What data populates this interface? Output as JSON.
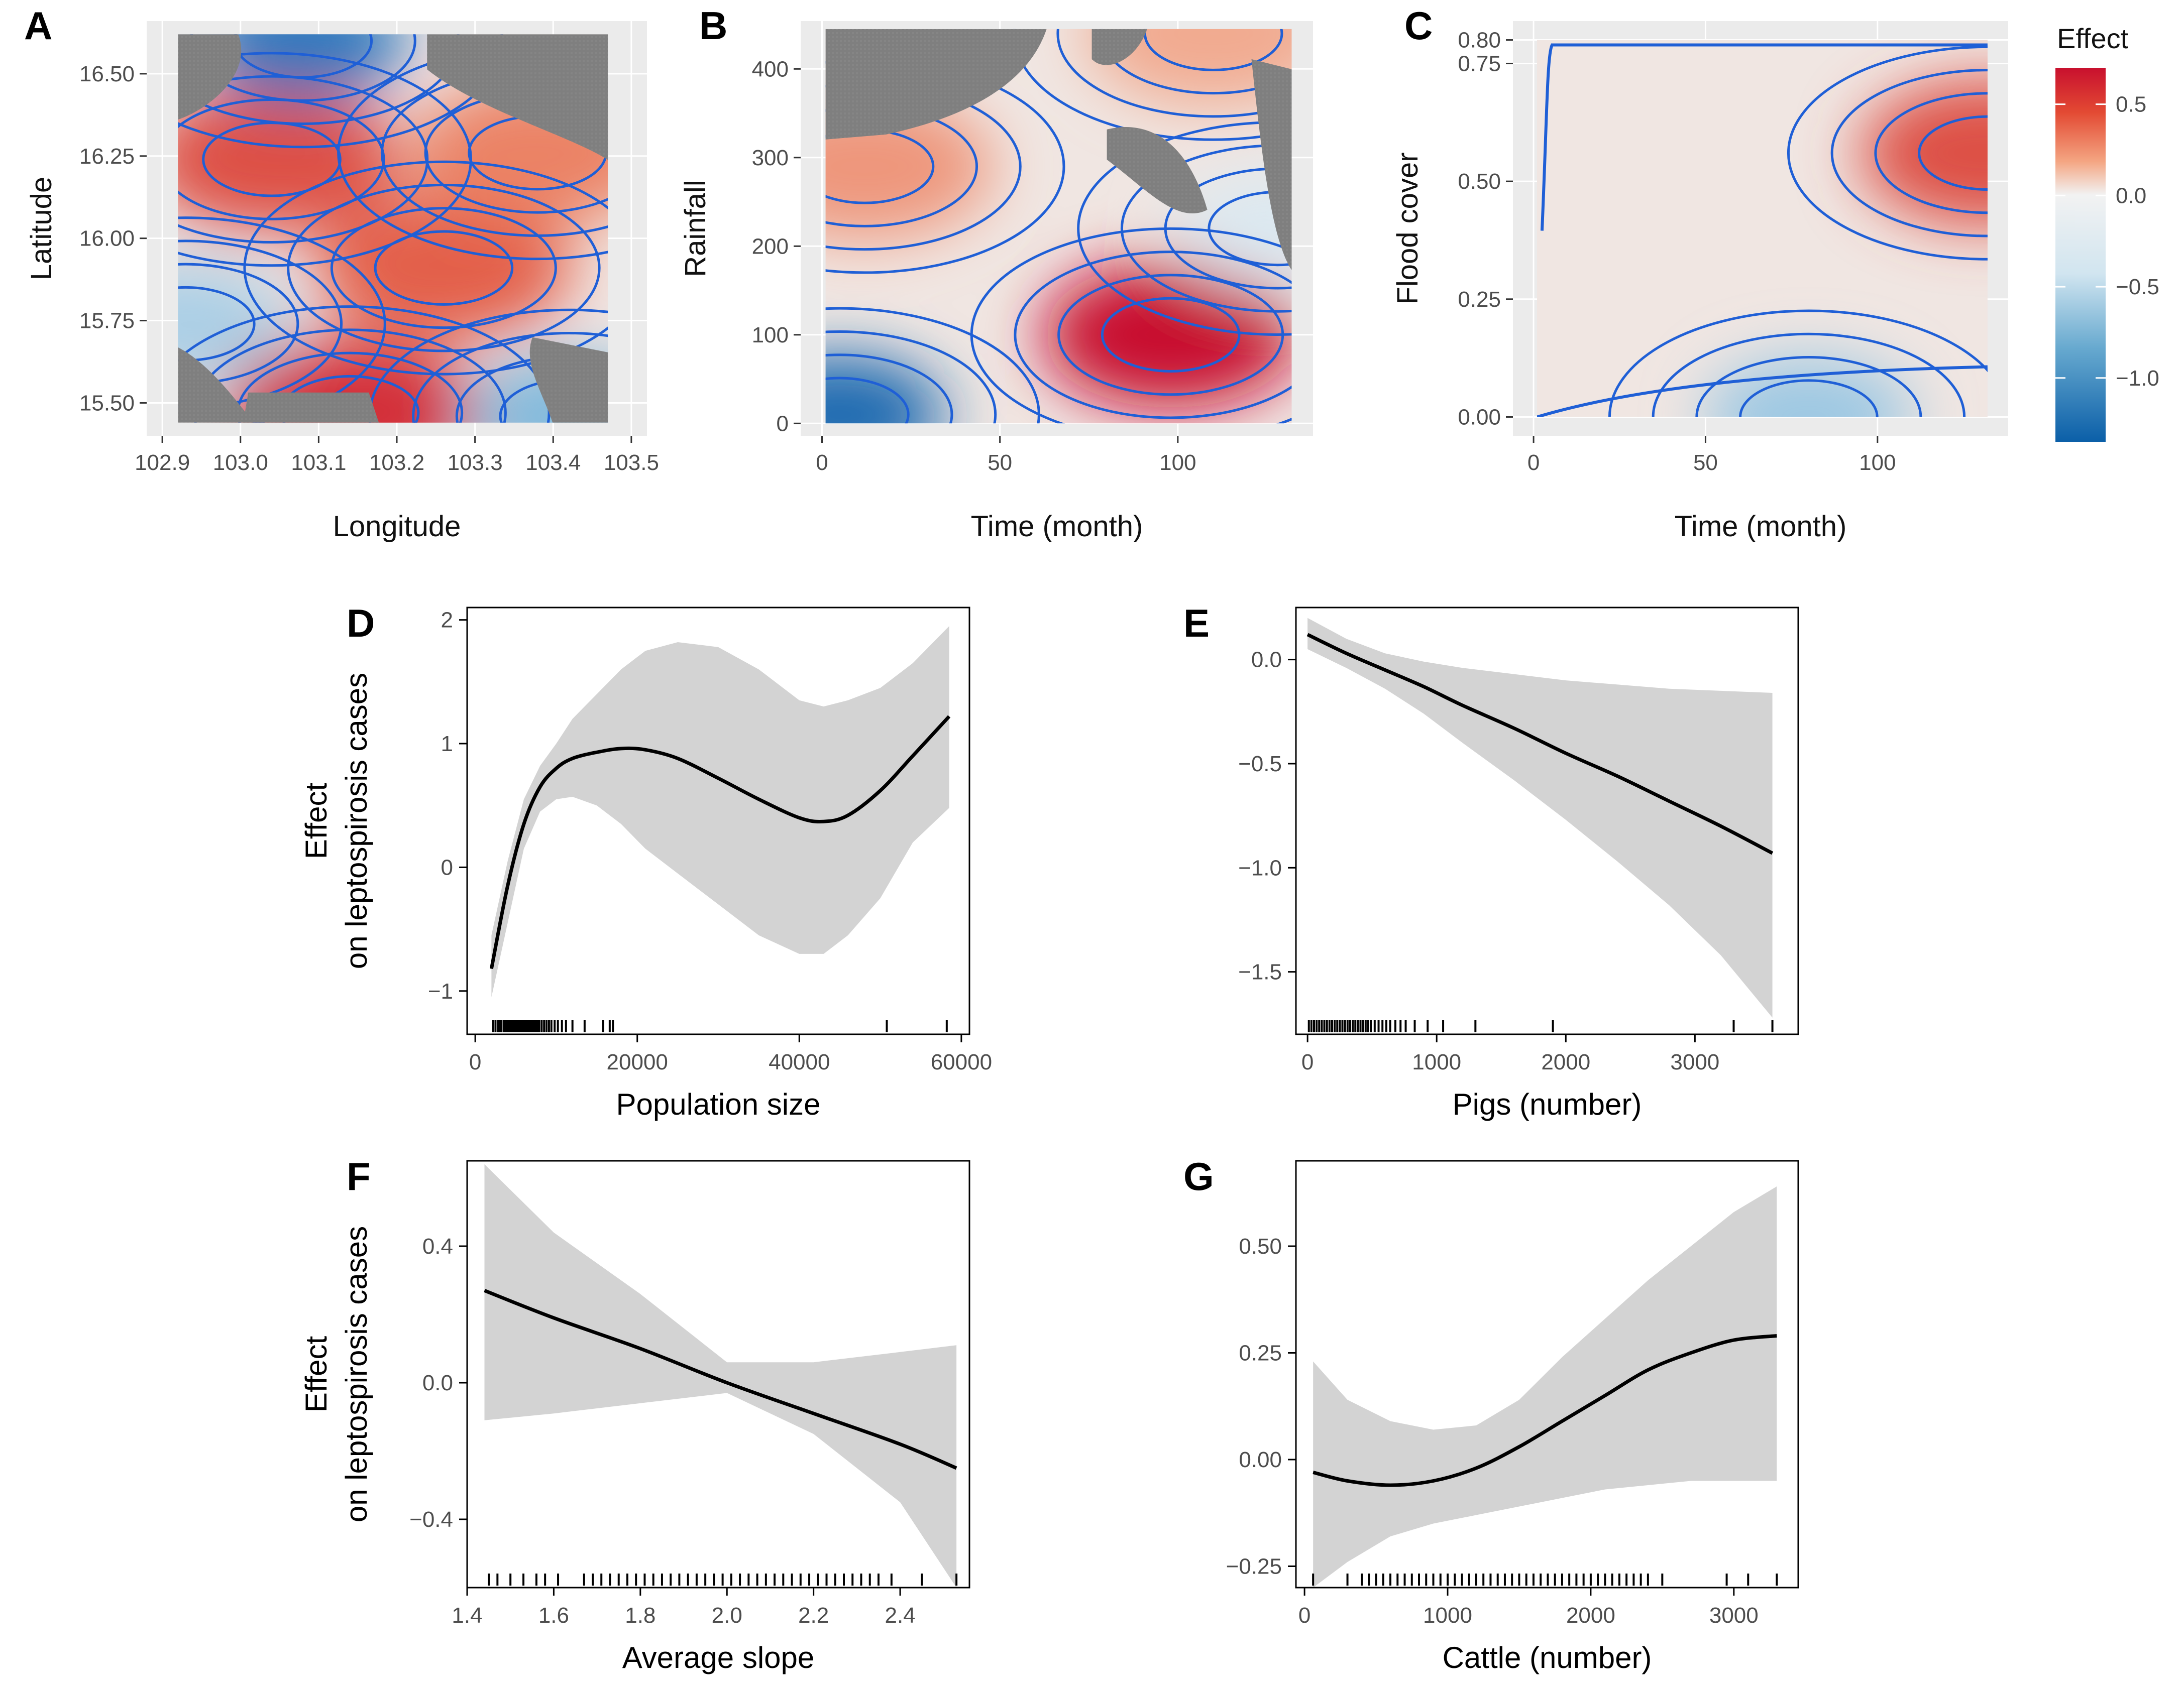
{
  "legend": {
    "title": "Effect",
    "ticks": [
      0.5,
      0.0,
      -0.5,
      -1.0
    ],
    "tick_labels": [
      "0.5",
      "0.0",
      "−0.5",
      "−1.0"
    ],
    "range": [
      -1.35,
      0.7
    ],
    "colors": {
      "high": "#c8102e",
      "mid": "#f2f2f2",
      "low": "#0b5fa8"
    }
  },
  "colors": {
    "panel_bg": "#ebebeb",
    "grid": "#ffffff",
    "contour": "#1f5fd6",
    "missing": "#7f7f7f",
    "ci_band": "#d3d3d3",
    "line": "#000000"
  },
  "chart_data": [
    {
      "id": "A",
      "type": "heatmap",
      "letter": "A",
      "xlabel": "Longitude",
      "ylabel": "Latitude",
      "xlim": [
        102.88,
        103.52
      ],
      "ylim": [
        15.4,
        16.66
      ],
      "xticks": [
        102.9,
        103.0,
        103.1,
        103.2,
        103.3,
        103.4,
        103.5
      ],
      "xtick_labels": [
        "102.9",
        "103.0",
        "103.1",
        "103.2",
        "103.3",
        "103.4",
        "103.5"
      ],
      "yticks": [
        15.5,
        15.75,
        16.0,
        16.25,
        16.5
      ],
      "ytick_labels": [
        "15.50",
        "15.75",
        "16.00",
        "16.25",
        "16.50"
      ],
      "grid": true,
      "data_extent": {
        "x": [
          102.92,
          103.47
        ],
        "y": [
          15.44,
          16.62
        ]
      },
      "hotspots": [
        {
          "x": 103.04,
          "y": 16.24,
          "value": 0.5
        },
        {
          "x": 103.26,
          "y": 15.91,
          "value": 0.45
        },
        {
          "x": 103.14,
          "y": 15.47,
          "value": 0.6
        },
        {
          "x": 103.38,
          "y": 16.26,
          "value": 0.35
        },
        {
          "x": 103.08,
          "y": 16.6,
          "value": -1.0
        },
        {
          "x": 103.42,
          "y": 15.46,
          "value": -0.6
        },
        {
          "x": 102.93,
          "y": 15.74,
          "value": -0.45
        }
      ]
    },
    {
      "id": "B",
      "type": "heatmap",
      "letter": "B",
      "xlabel": "Time (month)",
      "ylabel": "Rainfall",
      "xlim": [
        -6,
        138
      ],
      "ylim": [
        -14,
        454
      ],
      "xticks": [
        0,
        50,
        100
      ],
      "xtick_labels": [
        "0",
        "50",
        "100"
      ],
      "yticks": [
        0,
        100,
        200,
        300,
        400
      ],
      "ytick_labels": [
        "0",
        "100",
        "200",
        "300",
        "400"
      ],
      "grid": true,
      "data_extent": {
        "x": [
          1,
          132
        ],
        "y": [
          0,
          445
        ]
      },
      "hotspots": [
        {
          "x": 98,
          "y": 100,
          "value": 0.7
        },
        {
          "x": 5,
          "y": 10,
          "value": -1.2
        },
        {
          "x": 12,
          "y": 290,
          "value": 0.3
        },
        {
          "x": 110,
          "y": 440,
          "value": 0.25
        },
        {
          "x": 128,
          "y": 220,
          "value": -0.2
        }
      ]
    },
    {
      "id": "C",
      "type": "heatmap",
      "letter": "C",
      "xlabel": "Time (month)",
      "ylabel": "Flood cover",
      "xlim": [
        -6,
        138
      ],
      "ylim": [
        -0.04,
        0.84
      ],
      "xticks": [
        0,
        50,
        100
      ],
      "xtick_labels": [
        "0",
        "50",
        "100"
      ],
      "yticks": [
        0.0,
        0.25,
        0.5,
        0.75,
        0.8
      ],
      "ytick_labels": [
        "0.00",
        "0.25",
        "0.50",
        "0.75",
        "0.80"
      ],
      "grid": true,
      "data_extent": {
        "x": [
          1,
          132
        ],
        "y": [
          0.0,
          0.8
        ]
      },
      "hotspots": [
        {
          "x": 132,
          "y": 0.56,
          "value": 0.5
        },
        {
          "x": 80,
          "y": 0.0,
          "value": -0.5
        }
      ]
    },
    {
      "id": "D",
      "type": "line",
      "letter": "D",
      "xlabel": "Population size",
      "ylabel": "Effect\non leptospirosis cases",
      "ylabel_lines": [
        "Effect",
        "on leptospirosis cases"
      ],
      "xlim": [
        -1000,
        61000
      ],
      "ylim": [
        -1.35,
        2.1
      ],
      "xticks": [
        0,
        20000,
        40000,
        60000
      ],
      "xtick_labels": [
        "0",
        "20000",
        "40000",
        "60000"
      ],
      "yticks": [
        -1,
        0,
        1,
        2
      ],
      "ytick_labels": [
        "−1",
        "0",
        "1",
        "2"
      ],
      "x": [
        2000,
        4000,
        6000,
        8000,
        10000,
        12000,
        15000,
        18000,
        21000,
        25000,
        30000,
        35000,
        40000,
        43000,
        46000,
        50000,
        54000,
        58500
      ],
      "fit": [
        -0.82,
        -0.15,
        0.35,
        0.65,
        0.8,
        0.88,
        0.93,
        0.96,
        0.95,
        0.88,
        0.72,
        0.55,
        0.4,
        0.37,
        0.42,
        0.62,
        0.9,
        1.22
      ],
      "lower": [
        -1.05,
        -0.45,
        0.15,
        0.45,
        0.55,
        0.57,
        0.5,
        0.35,
        0.15,
        -0.05,
        -0.3,
        -0.55,
        -0.7,
        -0.7,
        -0.55,
        -0.25,
        0.2,
        0.48
      ],
      "upper": [
        -0.55,
        0.05,
        0.55,
        0.82,
        1.0,
        1.2,
        1.4,
        1.6,
        1.75,
        1.82,
        1.78,
        1.6,
        1.35,
        1.3,
        1.35,
        1.45,
        1.65,
        1.95
      ],
      "rug": [
        2200,
        2500,
        2800,
        3000,
        3200,
        3500,
        3700,
        3900,
        4100,
        4300,
        4500,
        4700,
        4900,
        5100,
        5300,
        5500,
        5700,
        5900,
        6100,
        6300,
        6500,
        6700,
        6900,
        7100,
        7300,
        7500,
        7700,
        7900,
        8200,
        8500,
        8800,
        9100,
        9400,
        9800,
        10200,
        10700,
        11200,
        12000,
        13500,
        15800,
        16600,
        17000,
        50800,
        58200
      ]
    },
    {
      "id": "E",
      "type": "line",
      "letter": "E",
      "xlabel": "Pigs (number)",
      "ylabel": "",
      "xlim": [
        -90,
        3800
      ],
      "ylim": [
        -1.8,
        0.25
      ],
      "xticks": [
        0,
        1000,
        2000,
        3000
      ],
      "xtick_labels": [
        "0",
        "1000",
        "2000",
        "3000"
      ],
      "yticks": [
        0.0,
        -0.5,
        -1.0,
        -1.5
      ],
      "ytick_labels": [
        "0.0",
        "−0.5",
        "−1.0",
        "−1.5"
      ],
      "x": [
        0,
        300,
        600,
        900,
        1200,
        1600,
        2000,
        2400,
        2800,
        3200,
        3600
      ],
      "fit": [
        0.12,
        0.03,
        -0.05,
        -0.13,
        -0.22,
        -0.33,
        -0.45,
        -0.56,
        -0.68,
        -0.8,
        -0.93
      ],
      "lower": [
        0.05,
        -0.04,
        -0.14,
        -0.26,
        -0.4,
        -0.58,
        -0.77,
        -0.97,
        -1.18,
        -1.42,
        -1.72
      ],
      "upper": [
        0.2,
        0.1,
        0.03,
        -0.01,
        -0.04,
        -0.07,
        -0.1,
        -0.12,
        -0.14,
        -0.15,
        -0.16
      ],
      "rug": [
        10,
        30,
        50,
        70,
        90,
        110,
        130,
        150,
        170,
        190,
        210,
        230,
        250,
        270,
        290,
        310,
        330,
        350,
        370,
        390,
        410,
        430,
        450,
        470,
        490,
        520,
        550,
        580,
        610,
        640,
        680,
        720,
        760,
        830,
        930,
        1050,
        1300,
        1900,
        3300,
        3600
      ]
    },
    {
      "id": "F",
      "type": "line",
      "letter": "F",
      "xlabel": "Average slope",
      "ylabel": "Effect\non leptospirosis cases",
      "ylabel_lines": [
        "Effect",
        "on leptospirosis cases"
      ],
      "xlim": [
        1.4,
        2.56
      ],
      "ylim": [
        -0.6,
        0.65
      ],
      "xticks": [
        1.4,
        1.6,
        1.8,
        2.0,
        2.2,
        2.4
      ],
      "xtick_labels": [
        "1.4",
        "1.6",
        "1.8",
        "2.0",
        "2.2",
        "2.4"
      ],
      "yticks": [
        0.4,
        0.0,
        -0.4
      ],
      "ytick_labels": [
        "0.4",
        "0.0",
        "−0.4"
      ],
      "x": [
        1.44,
        1.6,
        1.8,
        2.0,
        2.2,
        2.4,
        2.53
      ],
      "fit": [
        0.27,
        0.19,
        0.1,
        0.0,
        -0.09,
        -0.18,
        -0.25
      ],
      "lower": [
        -0.11,
        -0.09,
        -0.06,
        -0.03,
        -0.15,
        -0.35,
        -0.6
      ],
      "upper": [
        0.64,
        0.44,
        0.26,
        0.06,
        0.06,
        0.09,
        0.11
      ],
      "rug": [
        1.45,
        1.47,
        1.5,
        1.53,
        1.56,
        1.58,
        1.61,
        1.67,
        1.69,
        1.71,
        1.73,
        1.75,
        1.77,
        1.79,
        1.81,
        1.83,
        1.85,
        1.87,
        1.89,
        1.91,
        1.93,
        1.95,
        1.97,
        1.99,
        2.01,
        2.03,
        2.05,
        2.07,
        2.09,
        2.11,
        2.13,
        2.15,
        2.17,
        2.19,
        2.21,
        2.23,
        2.25,
        2.27,
        2.29,
        2.31,
        2.33,
        2.35,
        2.38,
        2.45,
        2.53
      ]
    },
    {
      "id": "G",
      "type": "line",
      "letter": "G",
      "xlabel": "Cattle (number)",
      "ylabel": "",
      "xlim": [
        -60,
        3450
      ],
      "ylim": [
        -0.3,
        0.7
      ],
      "xticks": [
        0,
        1000,
        2000,
        3000
      ],
      "xtick_labels": [
        "0",
        "1000",
        "2000",
        "3000"
      ],
      "yticks": [
        0.5,
        0.25,
        0.0,
        -0.25
      ],
      "ytick_labels": [
        "0.50",
        "0.25",
        "0.00",
        "−0.25"
      ],
      "x": [
        60,
        300,
        600,
        900,
        1200,
        1500,
        1800,
        2100,
        2400,
        2700,
        3000,
        3300
      ],
      "fit": [
        -0.03,
        -0.05,
        -0.06,
        -0.05,
        -0.02,
        0.03,
        0.09,
        0.15,
        0.21,
        0.25,
        0.28,
        0.29
      ],
      "lower": [
        -0.3,
        -0.24,
        -0.18,
        -0.15,
        -0.13,
        -0.11,
        -0.09,
        -0.07,
        -0.06,
        -0.05,
        -0.05,
        -0.05
      ],
      "upper": [
        0.23,
        0.14,
        0.09,
        0.07,
        0.08,
        0.14,
        0.24,
        0.33,
        0.42,
        0.5,
        0.58,
        0.64
      ],
      "rug": [
        60,
        300,
        400,
        450,
        500,
        550,
        600,
        650,
        700,
        750,
        800,
        850,
        900,
        950,
        1000,
        1050,
        1100,
        1150,
        1200,
        1250,
        1300,
        1350,
        1400,
        1450,
        1500,
        1550,
        1600,
        1650,
        1700,
        1750,
        1800,
        1850,
        1900,
        1950,
        2000,
        2050,
        2100,
        2150,
        2200,
        2250,
        2300,
        2350,
        2400,
        2500,
        2950,
        3100,
        3300
      ]
    }
  ]
}
